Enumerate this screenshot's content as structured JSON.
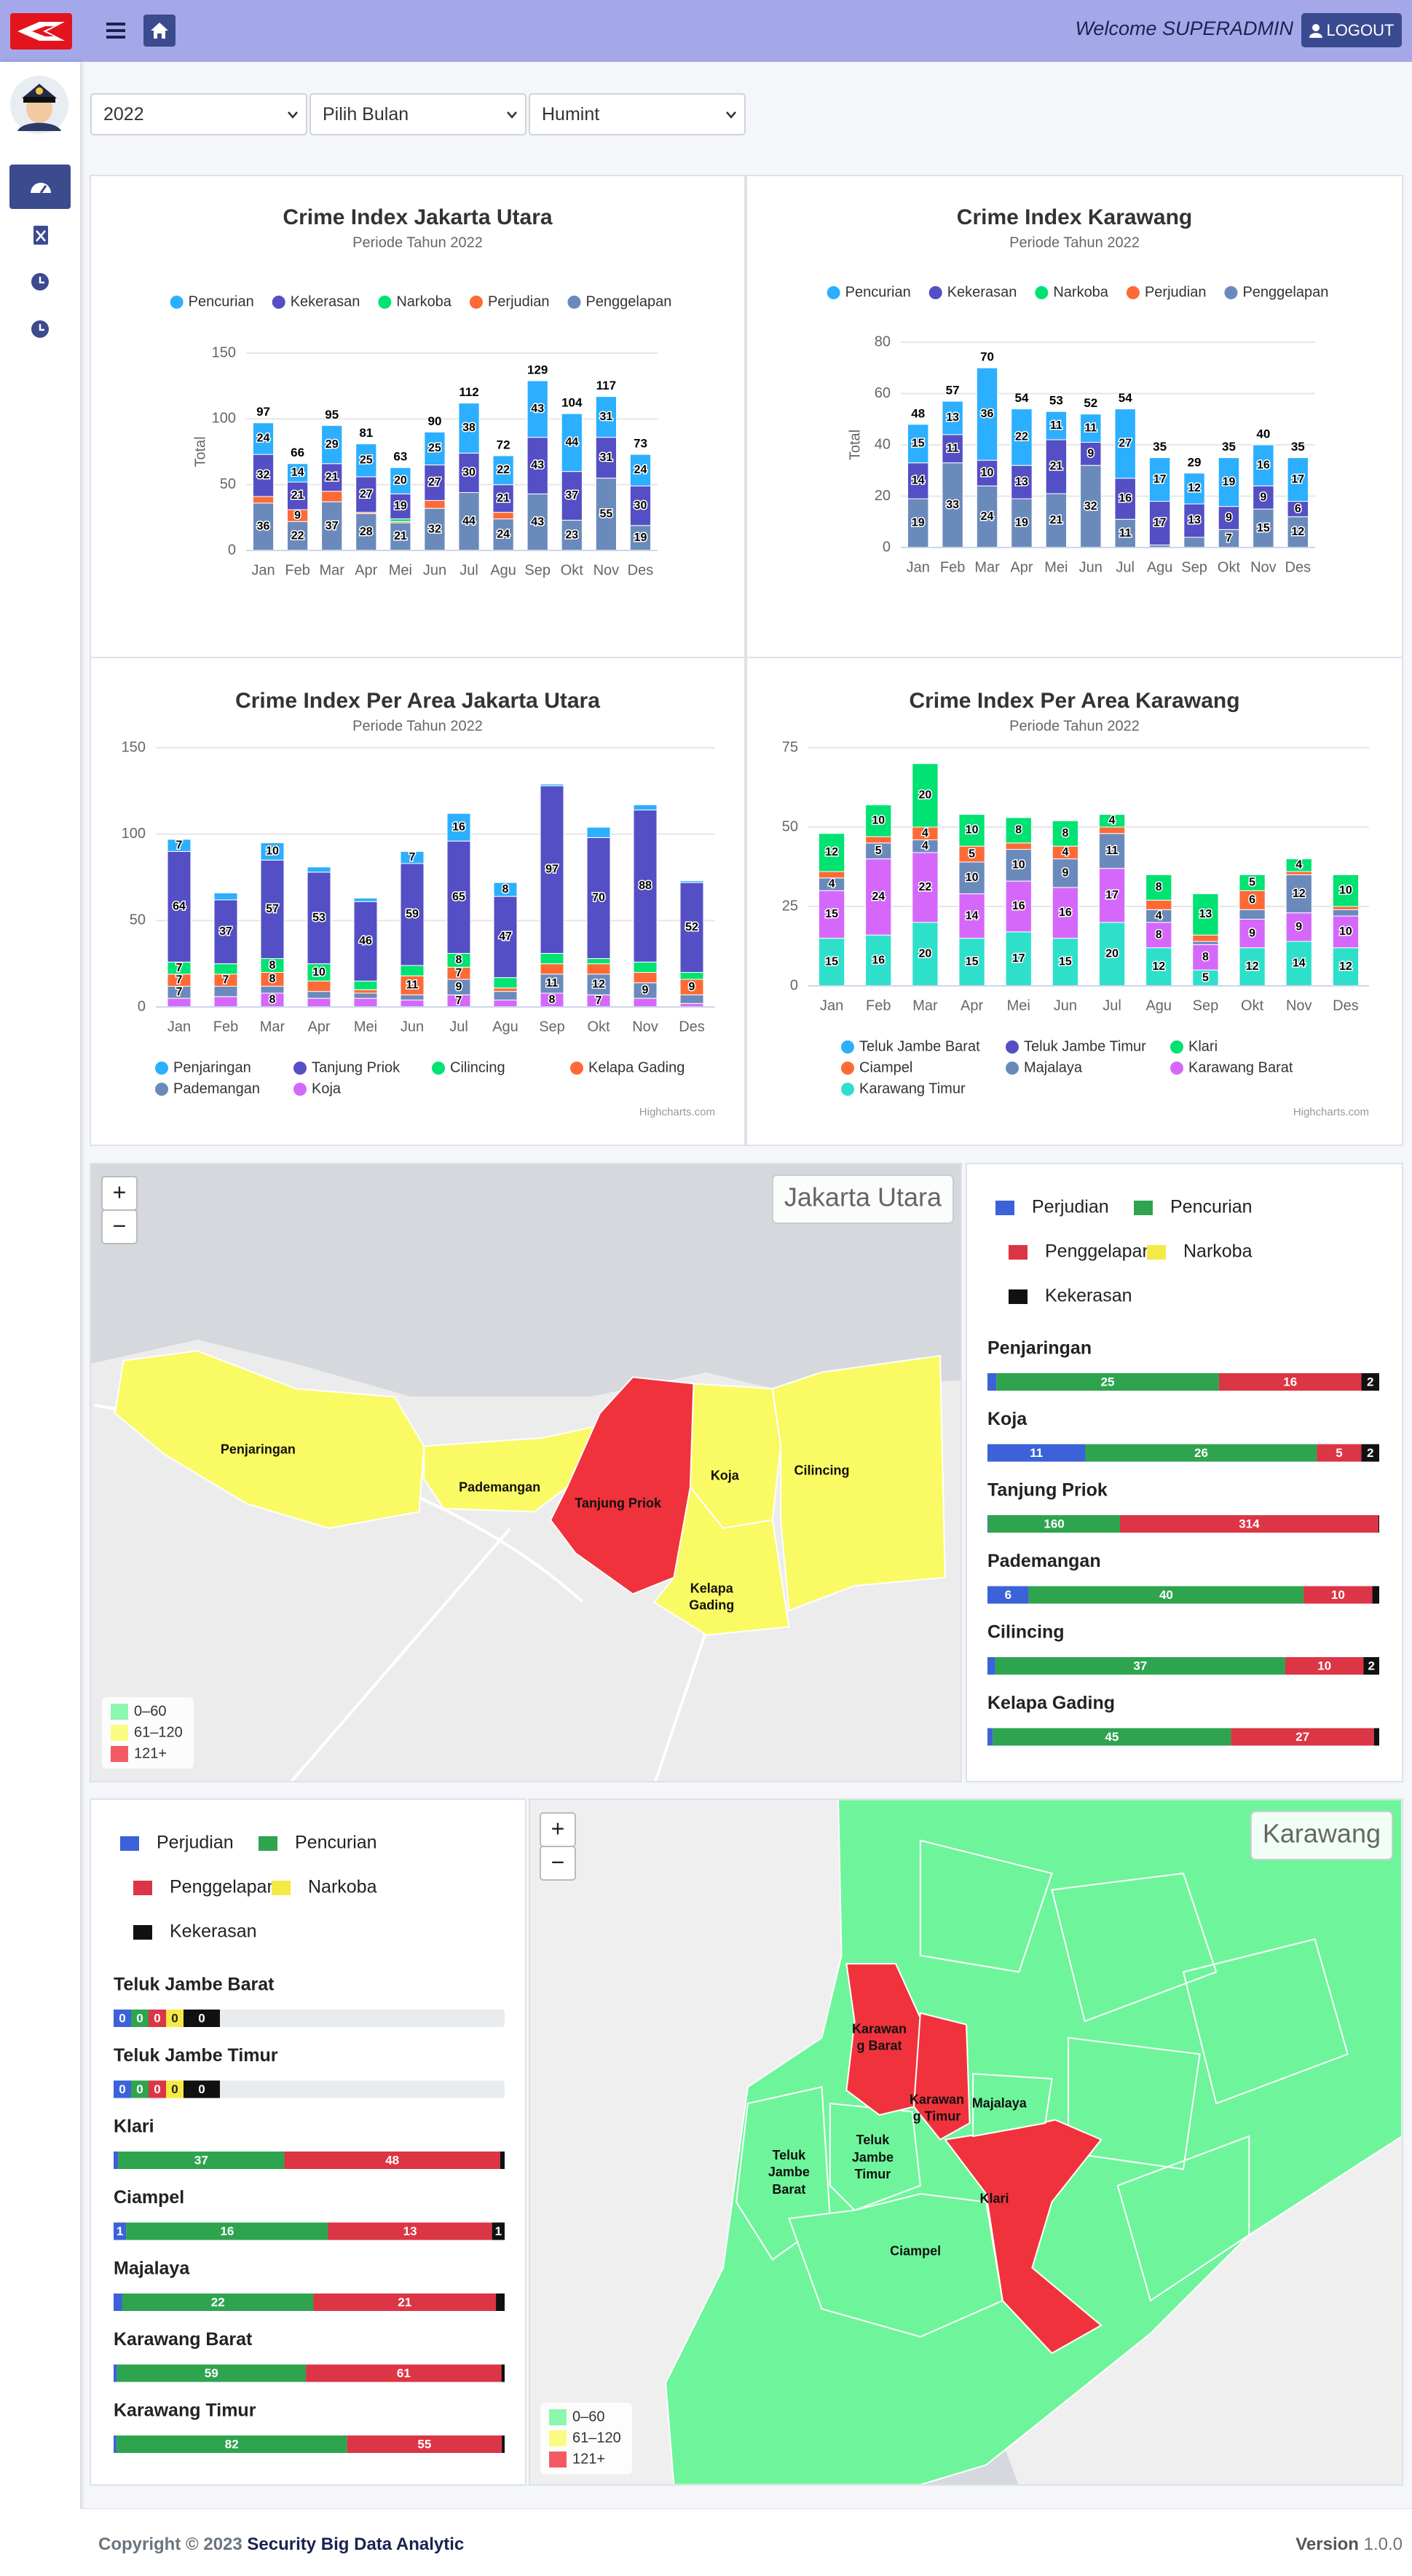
{
  "header": {
    "welcome": "Welcome SUPERADMIN",
    "logout": "LOGOUT"
  },
  "filters": [
    "2022",
    "Pilih Bulan",
    "Humint"
  ],
  "chart_data": [
    {
      "type": "bar",
      "stacking": "normal",
      "title": "Crime Index Jakarta Utara",
      "subtitle": "Periode Tahun 2022",
      "y_label": "Total",
      "legend": "top",
      "grid": true,
      "categories": [
        "Jan",
        "Feb",
        "Mar",
        "Apr",
        "Mei",
        "Jun",
        "Jul",
        "Agu",
        "Sep",
        "Okt",
        "Nov",
        "Des"
      ],
      "series": [
        {
          "name": "Pencurian",
          "color": "#2caffe",
          "values": [
            24,
            14,
            29,
            25,
            20,
            25,
            38,
            22,
            43,
            44,
            31,
            24
          ]
        },
        {
          "name": "Kekerasan",
          "color": "#544fc5",
          "values": [
            32,
            21,
            21,
            27,
            19,
            27,
            30,
            21,
            43,
            37,
            31,
            30
          ]
        },
        {
          "name": "Narkoba",
          "color": "#00e272",
          "values": [
            0,
            0,
            0,
            0,
            2,
            0,
            0,
            0,
            0,
            0,
            0,
            0
          ]
        },
        {
          "name": "Perjudian",
          "color": "#fe6a35",
          "values": [
            5,
            9,
            8,
            1,
            1,
            6,
            0,
            5,
            0,
            0,
            0,
            0
          ]
        },
        {
          "name": "Penggelapan",
          "color": "#6b8abc",
          "values": [
            36,
            22,
            37,
            28,
            21,
            32,
            44,
            24,
            43,
            23,
            55,
            19
          ]
        }
      ],
      "stack_totals": [
        97,
        66,
        95,
        81,
        63,
        90,
        112,
        72,
        129,
        104,
        117,
        73
      ],
      "ylim": [
        0,
        150
      ],
      "yticks": [
        0,
        50,
        100,
        150
      ]
    },
    {
      "type": "bar",
      "stacking": "normal",
      "title": "Crime Index Karawang",
      "subtitle": "Periode Tahun 2022",
      "y_label": "Total",
      "legend": "top",
      "grid": true,
      "categories": [
        "Jan",
        "Feb",
        "Mar",
        "Apr",
        "Mei",
        "Jun",
        "Jul",
        "Agu",
        "Sep",
        "Okt",
        "Nov",
        "Des"
      ],
      "series": [
        {
          "name": "Pencurian",
          "color": "#2caffe",
          "values": [
            15,
            13,
            36,
            22,
            11,
            11,
            27,
            17,
            12,
            19,
            16,
            17
          ]
        },
        {
          "name": "Kekerasan",
          "color": "#544fc5",
          "values": [
            14,
            11,
            10,
            13,
            21,
            9,
            16,
            17,
            13,
            9,
            9,
            6
          ]
        },
        {
          "name": "Narkoba",
          "color": "#00e272",
          "values": [
            0,
            0,
            0,
            0,
            0,
            0,
            0,
            0,
            0,
            0,
            0,
            0
          ]
        },
        {
          "name": "Perjudian",
          "color": "#fe6a35",
          "values": [
            0,
            0,
            0,
            0,
            0,
            0,
            0,
            0,
            0,
            0,
            0,
            0
          ]
        },
        {
          "name": "Penggelapan",
          "color": "#6b8abc",
          "values": [
            19,
            33,
            24,
            19,
            21,
            32,
            11,
            1,
            4,
            7,
            15,
            12
          ]
        }
      ],
      "stack_totals": [
        48,
        57,
        70,
        54,
        53,
        52,
        54,
        35,
        29,
        35,
        40,
        35
      ],
      "ylim": [
        0,
        80
      ],
      "yticks": [
        0,
        20,
        40,
        60,
        80
      ]
    },
    {
      "type": "bar",
      "stacking": "normal",
      "title": "Crime Index Per Area Jakarta Utara",
      "subtitle": "Periode Tahun 2022",
      "legend": "bottom",
      "grid": true,
      "credits": "Highcharts.com",
      "categories": [
        "Jan",
        "Feb",
        "Mar",
        "Apr",
        "Mei",
        "Jun",
        "Jul",
        "Agu",
        "Sep",
        "Okt",
        "Nov",
        "Des"
      ],
      "series": [
        {
          "name": "Penjaringan",
          "color": "#2caffe",
          "values": [
            7,
            4,
            10,
            3,
            2,
            7,
            16,
            8,
            1,
            6,
            3,
            1
          ]
        },
        {
          "name": "Tanjung Priok",
          "color": "#544fc5",
          "values": [
            64,
            37,
            57,
            53,
            46,
            59,
            65,
            47,
            97,
            70,
            88,
            52
          ]
        },
        {
          "name": "Cilincing",
          "color": "#00e272",
          "values": [
            7,
            6,
            8,
            10,
            5,
            6,
            8,
            6,
            6,
            3,
            6,
            4
          ]
        },
        {
          "name": "Kelapa Gading",
          "color": "#fe6a35",
          "values": [
            7,
            7,
            8,
            6,
            2,
            11,
            7,
            2,
            6,
            6,
            6,
            9
          ]
        },
        {
          "name": "Pademangan",
          "color": "#6b8abc",
          "values": [
            7,
            6,
            4,
            4,
            3,
            3,
            9,
            5,
            11,
            12,
            9,
            5
          ]
        },
        {
          "name": "Koja",
          "color": "#d568fb",
          "values": [
            5,
            6,
            8,
            5,
            5,
            4,
            7,
            4,
            8,
            7,
            5,
            2
          ]
        }
      ],
      "ylim": [
        0,
        150
      ],
      "yticks": [
        0,
        50,
        100,
        150
      ]
    },
    {
      "type": "bar",
      "stacking": "normal",
      "title": "Crime Index Per Area Karawang",
      "subtitle": "Periode Tahun 2022",
      "legend": "bottom",
      "grid": true,
      "credits": "Highcharts.com",
      "categories": [
        "Jan",
        "Feb",
        "Mar",
        "Apr",
        "Mei",
        "Jun",
        "Jul",
        "Agu",
        "Sep",
        "Okt",
        "Nov",
        "Des"
      ],
      "series": [
        {
          "name": "Teluk Jambe Barat",
          "color": "#2caffe",
          "values": [
            0,
            0,
            0,
            0,
            0,
            0,
            0,
            0,
            0,
            0,
            0,
            0
          ]
        },
        {
          "name": "Teluk Jambe Timur",
          "color": "#544fc5",
          "values": [
            0,
            0,
            0,
            0,
            0,
            0,
            0,
            0,
            0,
            0,
            0,
            0
          ]
        },
        {
          "name": "Klari",
          "color": "#00e272",
          "values": [
            12,
            10,
            20,
            10,
            8,
            8,
            4,
            8,
            13,
            5,
            4,
            10
          ]
        },
        {
          "name": "Ciampel",
          "color": "#fe6a35",
          "values": [
            2,
            2,
            4,
            5,
            2,
            4,
            2,
            3,
            2,
            6,
            1,
            1
          ]
        },
        {
          "name": "Majalaya",
          "color": "#6b8abc",
          "values": [
            4,
            5,
            4,
            10,
            10,
            9,
            11,
            4,
            1,
            3,
            12,
            2
          ]
        },
        {
          "name": "Karawang Barat",
          "color": "#d568fb",
          "values": [
            15,
            24,
            22,
            14,
            16,
            16,
            17,
            8,
            8,
            9,
            9,
            10
          ]
        },
        {
          "name": "Karawang Timur",
          "color": "#2ee0ca",
          "values": [
            15,
            16,
            20,
            15,
            17,
            15,
            20,
            12,
            5,
            12,
            14,
            12
          ]
        }
      ],
      "ylim": [
        0,
        75
      ],
      "yticks": [
        0,
        25,
        50,
        75
      ]
    }
  ],
  "zoom": [
    "+",
    "−"
  ],
  "map_legend": [
    {
      "label": "0–60",
      "color": "#6ef59b"
    },
    {
      "label": "61–120",
      "color": "#fafa64"
    },
    {
      "label": "121+",
      "color": "#f0323c"
    }
  ],
  "maps": [
    {
      "title": "Jakarta Utara",
      "regions": [
        {
          "name": "Penjaringan",
          "color": "#fafa64"
        },
        {
          "name": "Pademangan",
          "color": "#fafa64"
        },
        {
          "name": "Tanjung Priok",
          "color": "#f0323c"
        },
        {
          "name": "Koja",
          "color": "#fafa64"
        },
        {
          "name": "Kelapa Gading",
          "color": "#fafa64"
        },
        {
          "name": "Cilincing",
          "color": "#fafa64"
        }
      ]
    },
    {
      "title": "Karawang",
      "regions": [
        {
          "name": "Teluk Jambe Barat",
          "color": "#6ef59b"
        },
        {
          "name": "Teluk Jambe Timur",
          "color": "#6ef59b"
        },
        {
          "name": "Klari",
          "color": "#f0323c"
        },
        {
          "name": "Ciampel",
          "color": "#6ef59b"
        },
        {
          "name": "Majalaya",
          "color": "#6ef59b"
        },
        {
          "name": "Karawang Barat",
          "color": "#f0323c"
        },
        {
          "name": "Karawang Timur",
          "color": "#f0323c"
        }
      ]
    }
  ],
  "segment_legend": [
    {
      "name": "Perjudian",
      "color": "#3b62d8"
    },
    {
      "name": "Pencurian",
      "color": "#2ea44f"
    },
    {
      "name": "Penggelapan",
      "color": "#dc3545"
    },
    {
      "name": "Narkoba",
      "color": "#f5ea45"
    },
    {
      "name": "Kekerasan",
      "color": "#111111"
    }
  ],
  "breakdown": [
    {
      "rows": [
        {
          "name": "Penjaringan",
          "values": [
            1,
            25,
            16,
            0,
            2
          ]
        },
        {
          "name": "Koja",
          "values": [
            11,
            26,
            5,
            0,
            2
          ]
        },
        {
          "name": "Tanjung Priok",
          "values": [
            1,
            160,
            314,
            0,
            1
          ]
        },
        {
          "name": "Pademangan",
          "values": [
            6,
            40,
            10,
            0,
            1
          ]
        },
        {
          "name": "Cilincing",
          "values": [
            1,
            37,
            10,
            0,
            2
          ]
        },
        {
          "name": "Kelapa Gading",
          "values": [
            1,
            45,
            27,
            0,
            1
          ]
        }
      ]
    },
    {
      "rows": [
        {
          "name": "Teluk Jambe Barat",
          "values": [
            0,
            0,
            0,
            0,
            0
          ]
        },
        {
          "name": "Teluk Jambe Timur",
          "values": [
            0,
            0,
            0,
            0,
            0
          ]
        },
        {
          "name": "Klari",
          "values": [
            1,
            37,
            48,
            0,
            1
          ]
        },
        {
          "name": "Ciampel",
          "values": [
            1,
            16,
            13,
            0,
            1
          ]
        },
        {
          "name": "Majalaya",
          "values": [
            1,
            22,
            21,
            0,
            1
          ]
        },
        {
          "name": "Karawang Barat",
          "values": [
            1,
            59,
            61,
            0,
            1
          ]
        },
        {
          "name": "Karawang Timur",
          "values": [
            1,
            82,
            55,
            0,
            1
          ]
        }
      ]
    }
  ],
  "footer": {
    "copyright": "Copyright © 2023",
    "brand": "Security Big Data Analytic",
    "version_label": "Version",
    "version": "1.0.0"
  }
}
